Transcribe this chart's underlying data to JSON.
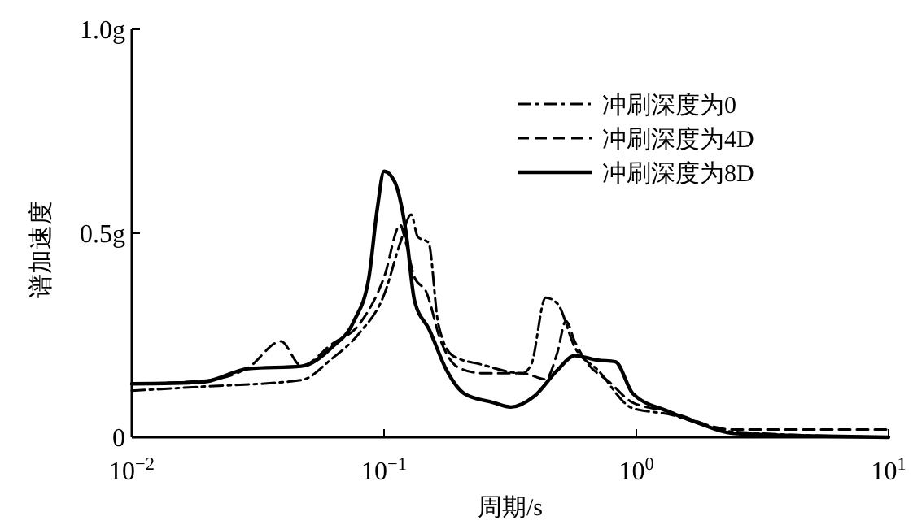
{
  "chart_data": {
    "type": "line",
    "xlabel": "周期/s",
    "ylabel": "谱加速度",
    "log": "x",
    "xlim": [
      0.01,
      10
    ],
    "ylim": [
      0,
      1
    ],
    "xticks": [
      {
        "value": 0.01,
        "label": "10$^{−2}$"
      },
      {
        "value": 0.1,
        "label": "10$^{−1}$"
      },
      {
        "value": 1,
        "label": "10$^{0}$"
      },
      {
        "value": 10,
        "label": "10$^{1}$"
      }
    ],
    "yticks": [
      0,
      {
        "value": 0.5,
        "label": "0.5g"
      },
      {
        "value": 1,
        "label": "1.0g"
      }
    ],
    "grid": false,
    "legend": "top right",
    "series": [
      {
        "name": "冲刷深度为0",
        "color": "#000000",
        "line_style": "dashdot",
        "x": [
          0.01,
          0.019,
          0.047,
          0.062,
          0.08,
          0.1,
          0.116,
          0.128,
          0.136,
          0.15,
          0.164,
          0.187,
          0.244,
          0.353,
          0.383,
          0.437,
          0.486,
          0.57,
          0.705,
          0.968,
          1.33,
          2.39,
          10
        ],
        "values": [
          0.114,
          0.124,
          0.14,
          0.192,
          0.256,
          0.349,
          0.477,
          0.546,
          0.491,
          0.477,
          0.278,
          0.2,
          0.178,
          0.157,
          0.178,
          0.342,
          0.328,
          0.221,
          0.164,
          0.071,
          0.057,
          0.014,
          0
        ]
      },
      {
        "name": "冲刷深度为4D",
        "color": "#000000",
        "line_style": "dashed",
        "x": [
          0.01,
          0.019,
          0.029,
          0.039,
          0.047,
          0.062,
          0.08,
          0.1,
          0.116,
          0.122,
          0.132,
          0.147,
          0.168,
          0.197,
          0.244,
          0.353,
          0.437,
          0.486,
          0.526,
          0.57,
          0.634,
          0.783,
          0.968,
          1.33,
          2.39,
          10
        ],
        "values": [
          0.131,
          0.138,
          0.171,
          0.235,
          0.175,
          0.228,
          0.278,
          0.392,
          0.52,
          0.477,
          0.392,
          0.356,
          0.235,
          0.171,
          0.157,
          0.157,
          0.142,
          0.207,
          0.285,
          0.235,
          0.185,
          0.135,
          0.085,
          0.064,
          0.019,
          0.019
        ]
      },
      {
        "name": "冲刷深度为8D",
        "color": "#000000",
        "line_style": "solid",
        "x": [
          0.01,
          0.019,
          0.029,
          0.047,
          0.062,
          0.076,
          0.087,
          0.094,
          0.1,
          0.11,
          0.122,
          0.132,
          0.151,
          0.177,
          0.208,
          0.271,
          0.318,
          0.393,
          0.486,
          0.57,
          0.705,
          0.826,
          0.968,
          1.33,
          1.74,
          2.39,
          5,
          10
        ],
        "values": [
          0.131,
          0.135,
          0.168,
          0.174,
          0.22,
          0.285,
          0.39,
          0.56,
          0.652,
          0.627,
          0.505,
          0.335,
          0.264,
          0.164,
          0.107,
          0.085,
          0.074,
          0.1,
          0.164,
          0.2,
          0.189,
          0.185,
          0.107,
          0.064,
          0.036,
          0.01,
          0.003,
          0
        ]
      }
    ]
  }
}
